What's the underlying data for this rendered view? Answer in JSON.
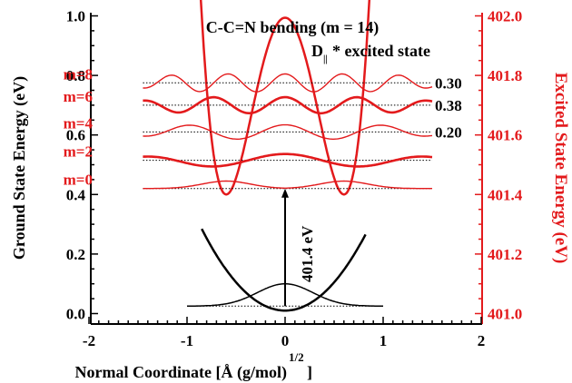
{
  "chart_data": {
    "type": "line",
    "title": "C-C=N bending (m = 14)",
    "subtitle": "D",
    "subtitle_sub": "||",
    "subtitle_tail": "* excited state",
    "xlabel": "Normal Coordinate [Å (g/mol)",
    "xlabel_sup": "1/2",
    "xlabel_tail": "]",
    "ylabel_left": "Ground State Energy (eV)",
    "ylabel_right": "Excited State Energy (eV)",
    "xlim": [
      -2,
      2
    ],
    "ylim_left": [
      -0.02,
      1.02
    ],
    "ylim_right": [
      401.0,
      402.0
    ],
    "x_ticks": [
      "-2",
      "-1",
      "0",
      "1",
      "2"
    ],
    "y_ticks_left": [
      "0.0",
      "0.2",
      "0.4",
      "0.6",
      "0.8",
      "1.0"
    ],
    "y_ticks_right": [
      "401.0",
      "401.2",
      "401.4",
      "401.6",
      "401.8",
      "402.0"
    ],
    "ground_state": {
      "potential": {
        "center": 0.0,
        "min_energy": 0.01,
        "curvature": 0.38
      },
      "levels": [
        {
          "m": 0,
          "energy": 0.025
        }
      ]
    },
    "excited_state": {
      "potential": {
        "center_left": -0.6,
        "center_right": 0.6,
        "min_energy": 0.4
      },
      "levels": [
        {
          "m": 0,
          "energy": 0.42,
          "label": "m=0"
        },
        {
          "m": 2,
          "energy": 0.515,
          "label": "m=2"
        },
        {
          "m": 4,
          "energy": 0.61,
          "label": "m=4"
        },
        {
          "m": 6,
          "energy": 0.7,
          "label": "m=6"
        },
        {
          "m": 8,
          "energy": 0.775,
          "label": "m=8"
        }
      ]
    },
    "transition": {
      "x": 0,
      "from": 0.025,
      "to": 0.42,
      "label": "401.4 eV"
    },
    "annotations": [
      {
        "text": "0.30",
        "y": 0.775
      },
      {
        "text": "0.38",
        "y": 0.7
      },
      {
        "text": "0.20",
        "y": 0.61
      }
    ],
    "colors": {
      "ground": "#000000",
      "excited": "#e31a1c"
    },
    "grid": false
  }
}
